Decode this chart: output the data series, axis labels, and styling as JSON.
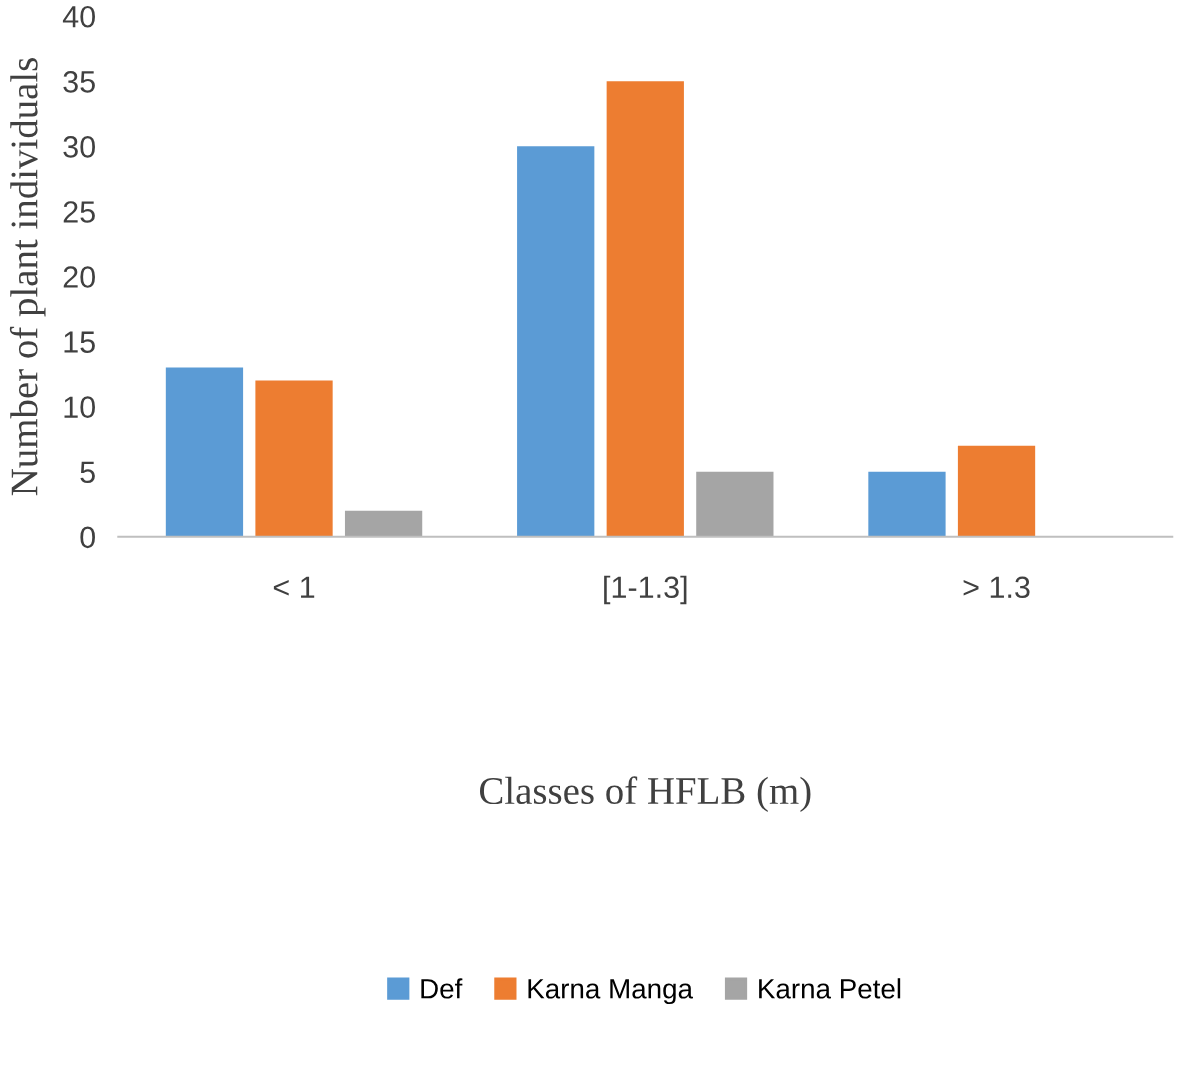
{
  "chart_data": {
    "type": "bar",
    "xlabel": "Classes of HFLB (m)",
    "ylabel": "Number of plant individuals",
    "categories": [
      "< 1",
      "[1-1.3]",
      "> 1.3"
    ],
    "series": [
      {
        "name": "Def",
        "color": "#5b9bd5",
        "values": [
          13,
          30,
          5
        ]
      },
      {
        "name": "Karna Manga",
        "color": "#ed7d31",
        "values": [
          12,
          35,
          7
        ]
      },
      {
        "name": "Karna Petel",
        "color": "#a5a5a5",
        "values": [
          2,
          5,
          0
        ]
      }
    ],
    "ylim": [
      0,
      40
    ],
    "yticks": [
      0,
      5,
      10,
      15,
      20,
      25,
      30,
      35,
      40
    ],
    "grid": false,
    "legend": "bottom"
  }
}
